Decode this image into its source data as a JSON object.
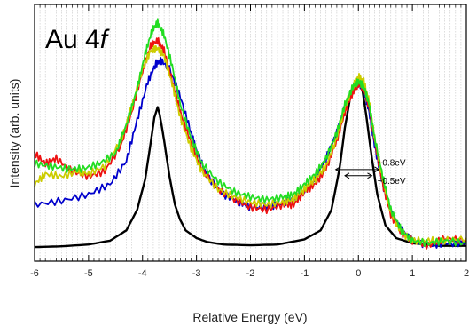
{
  "chart_data": {
    "type": "line",
    "title": "Au 4",
    "title_italic": "f",
    "xlabel": "Relative Energy (eV)",
    "ylabel": "Intensity (arb. units)",
    "xlim": [
      -6,
      2
    ],
    "ylim": [
      0,
      1
    ],
    "x_ticks": [
      -6,
      -5,
      -4,
      -3,
      -2,
      -1,
      0,
      1,
      2
    ],
    "x_tick_labels": [
      "-6",
      "-5",
      "-4",
      "-3",
      "-2",
      "-1",
      "0",
      "1",
      "2"
    ],
    "grid": "vertical dotted lines every 0.1 eV",
    "legend": "none",
    "annotations": [
      {
        "text": "~0.8eV",
        "x": 0.35,
        "y": 0.385
      },
      {
        "text": "~0.5eV",
        "x": 0.35,
        "y": 0.315
      }
    ],
    "fwhm_arrows": [
      {
        "x1": -0.42,
        "x2": 0.38,
        "y": 0.357
      },
      {
        "x1": -0.25,
        "x2": 0.25,
        "y": 0.333
      }
    ],
    "series": [
      {
        "color": "#000000",
        "x": [
          -6,
          -5.5,
          -5,
          -4.6,
          -4.3,
          -4.1,
          -3.95,
          -3.85,
          -3.78,
          -3.72,
          -3.68,
          -3.6,
          -3.5,
          -3.4,
          -3.3,
          -3.2,
          -3.0,
          -2.8,
          -2.5,
          -2.0,
          -1.5,
          -1.0,
          -0.7,
          -0.5,
          -0.35,
          -0.25,
          -0.15,
          -0.08,
          0.0,
          0.08,
          0.15,
          0.25,
          0.35,
          0.5,
          0.7,
          1.0,
          1.5,
          2.0
        ],
        "y": [
          0.055,
          0.058,
          0.065,
          0.08,
          0.12,
          0.2,
          0.32,
          0.46,
          0.56,
          0.6,
          0.57,
          0.47,
          0.33,
          0.22,
          0.16,
          0.12,
          0.09,
          0.075,
          0.065,
          0.062,
          0.065,
          0.085,
          0.12,
          0.2,
          0.36,
          0.52,
          0.64,
          0.69,
          0.7,
          0.66,
          0.56,
          0.4,
          0.26,
          0.14,
          0.09,
          0.07,
          0.06,
          0.06
        ]
      },
      {
        "color": "#0000cc",
        "x": [
          -6,
          -5.5,
          -5,
          -4.6,
          -4.3,
          -4.1,
          -3.9,
          -3.75,
          -3.65,
          -3.5,
          -3.3,
          -3.1,
          -3.0,
          -2.8,
          -2.5,
          -2.2,
          -2.0,
          -1.7,
          -1.5,
          -1.2,
          -1.0,
          -0.8,
          -0.6,
          -0.4,
          -0.25,
          -0.1,
          0.0,
          0.1,
          0.2,
          0.3,
          0.45,
          0.6,
          0.8,
          1.0,
          1.3,
          1.6,
          2.0
        ],
        "y": [
          0.22,
          0.235,
          0.26,
          0.3,
          0.39,
          0.55,
          0.7,
          0.77,
          0.78,
          0.75,
          0.64,
          0.5,
          0.43,
          0.33,
          0.26,
          0.23,
          0.21,
          0.21,
          0.22,
          0.24,
          0.27,
          0.32,
          0.4,
          0.5,
          0.6,
          0.67,
          0.69,
          0.67,
          0.58,
          0.45,
          0.3,
          0.19,
          0.12,
          0.08,
          0.06,
          0.07,
          0.07
        ]
      },
      {
        "color": "#ee1111",
        "x": [
          -6,
          -5.8,
          -5.6,
          -5.3,
          -5,
          -4.7,
          -4.4,
          -4.2,
          -4.0,
          -3.85,
          -3.72,
          -3.6,
          -3.45,
          -3.3,
          -3.1,
          -2.9,
          -2.6,
          -2.3,
          -2.0,
          -1.7,
          -1.4,
          -1.2,
          -1.0,
          -0.8,
          -0.6,
          -0.4,
          -0.25,
          -0.1,
          0.0,
          0.1,
          0.2,
          0.3,
          0.45,
          0.6,
          0.8,
          1.0,
          1.3,
          1.6,
          2.0
        ],
        "y": [
          0.42,
          0.38,
          0.4,
          0.35,
          0.33,
          0.35,
          0.45,
          0.58,
          0.74,
          0.84,
          0.86,
          0.82,
          0.7,
          0.58,
          0.46,
          0.36,
          0.28,
          0.24,
          0.21,
          0.2,
          0.22,
          0.22,
          0.27,
          0.3,
          0.36,
          0.47,
          0.58,
          0.66,
          0.69,
          0.67,
          0.6,
          0.47,
          0.3,
          0.18,
          0.11,
          0.08,
          0.06,
          0.09,
          0.08
        ]
      },
      {
        "color": "#cccc00",
        "x": [
          -6,
          -5.8,
          -5.5,
          -5.2,
          -5,
          -4.7,
          -4.4,
          -4.2,
          -4.0,
          -3.85,
          -3.72,
          -3.6,
          -3.45,
          -3.3,
          -3.1,
          -2.9,
          -2.6,
          -2.3,
          -2.0,
          -1.7,
          -1.4,
          -1.2,
          -1.0,
          -0.8,
          -0.6,
          -0.4,
          -0.25,
          -0.1,
          0.0,
          0.1,
          0.2,
          0.3,
          0.45,
          0.6,
          0.8,
          1.0,
          1.3,
          1.6,
          2.0
        ],
        "y": [
          0.3,
          0.34,
          0.33,
          0.35,
          0.34,
          0.37,
          0.47,
          0.6,
          0.75,
          0.82,
          0.83,
          0.8,
          0.69,
          0.56,
          0.44,
          0.35,
          0.28,
          0.25,
          0.23,
          0.22,
          0.23,
          0.24,
          0.28,
          0.32,
          0.37,
          0.48,
          0.6,
          0.68,
          0.72,
          0.7,
          0.62,
          0.48,
          0.32,
          0.19,
          0.11,
          0.08,
          0.08,
          0.08,
          0.09
        ]
      },
      {
        "color": "#22dd22",
        "x": [
          -6,
          -5.7,
          -5.4,
          -5.1,
          -4.8,
          -4.5,
          -4.3,
          -4.1,
          -3.95,
          -3.82,
          -3.72,
          -3.6,
          -3.45,
          -3.3,
          -3.1,
          -2.9,
          -2.6,
          -2.3,
          -2.0,
          -1.7,
          -1.4,
          -1.2,
          -1.0,
          -0.8,
          -0.6,
          -0.4,
          -0.25,
          -0.1,
          0.0,
          0.1,
          0.2,
          0.3,
          0.45,
          0.6,
          0.8,
          1.0,
          1.3,
          1.6,
          2.0
        ],
        "y": [
          0.38,
          0.37,
          0.36,
          0.36,
          0.38,
          0.42,
          0.53,
          0.67,
          0.81,
          0.9,
          0.93,
          0.88,
          0.76,
          0.61,
          0.48,
          0.38,
          0.31,
          0.27,
          0.25,
          0.24,
          0.25,
          0.26,
          0.3,
          0.34,
          0.4,
          0.5,
          0.61,
          0.68,
          0.7,
          0.68,
          0.61,
          0.48,
          0.33,
          0.2,
          0.12,
          0.08,
          0.07,
          0.08,
          0.07
        ]
      }
    ]
  }
}
